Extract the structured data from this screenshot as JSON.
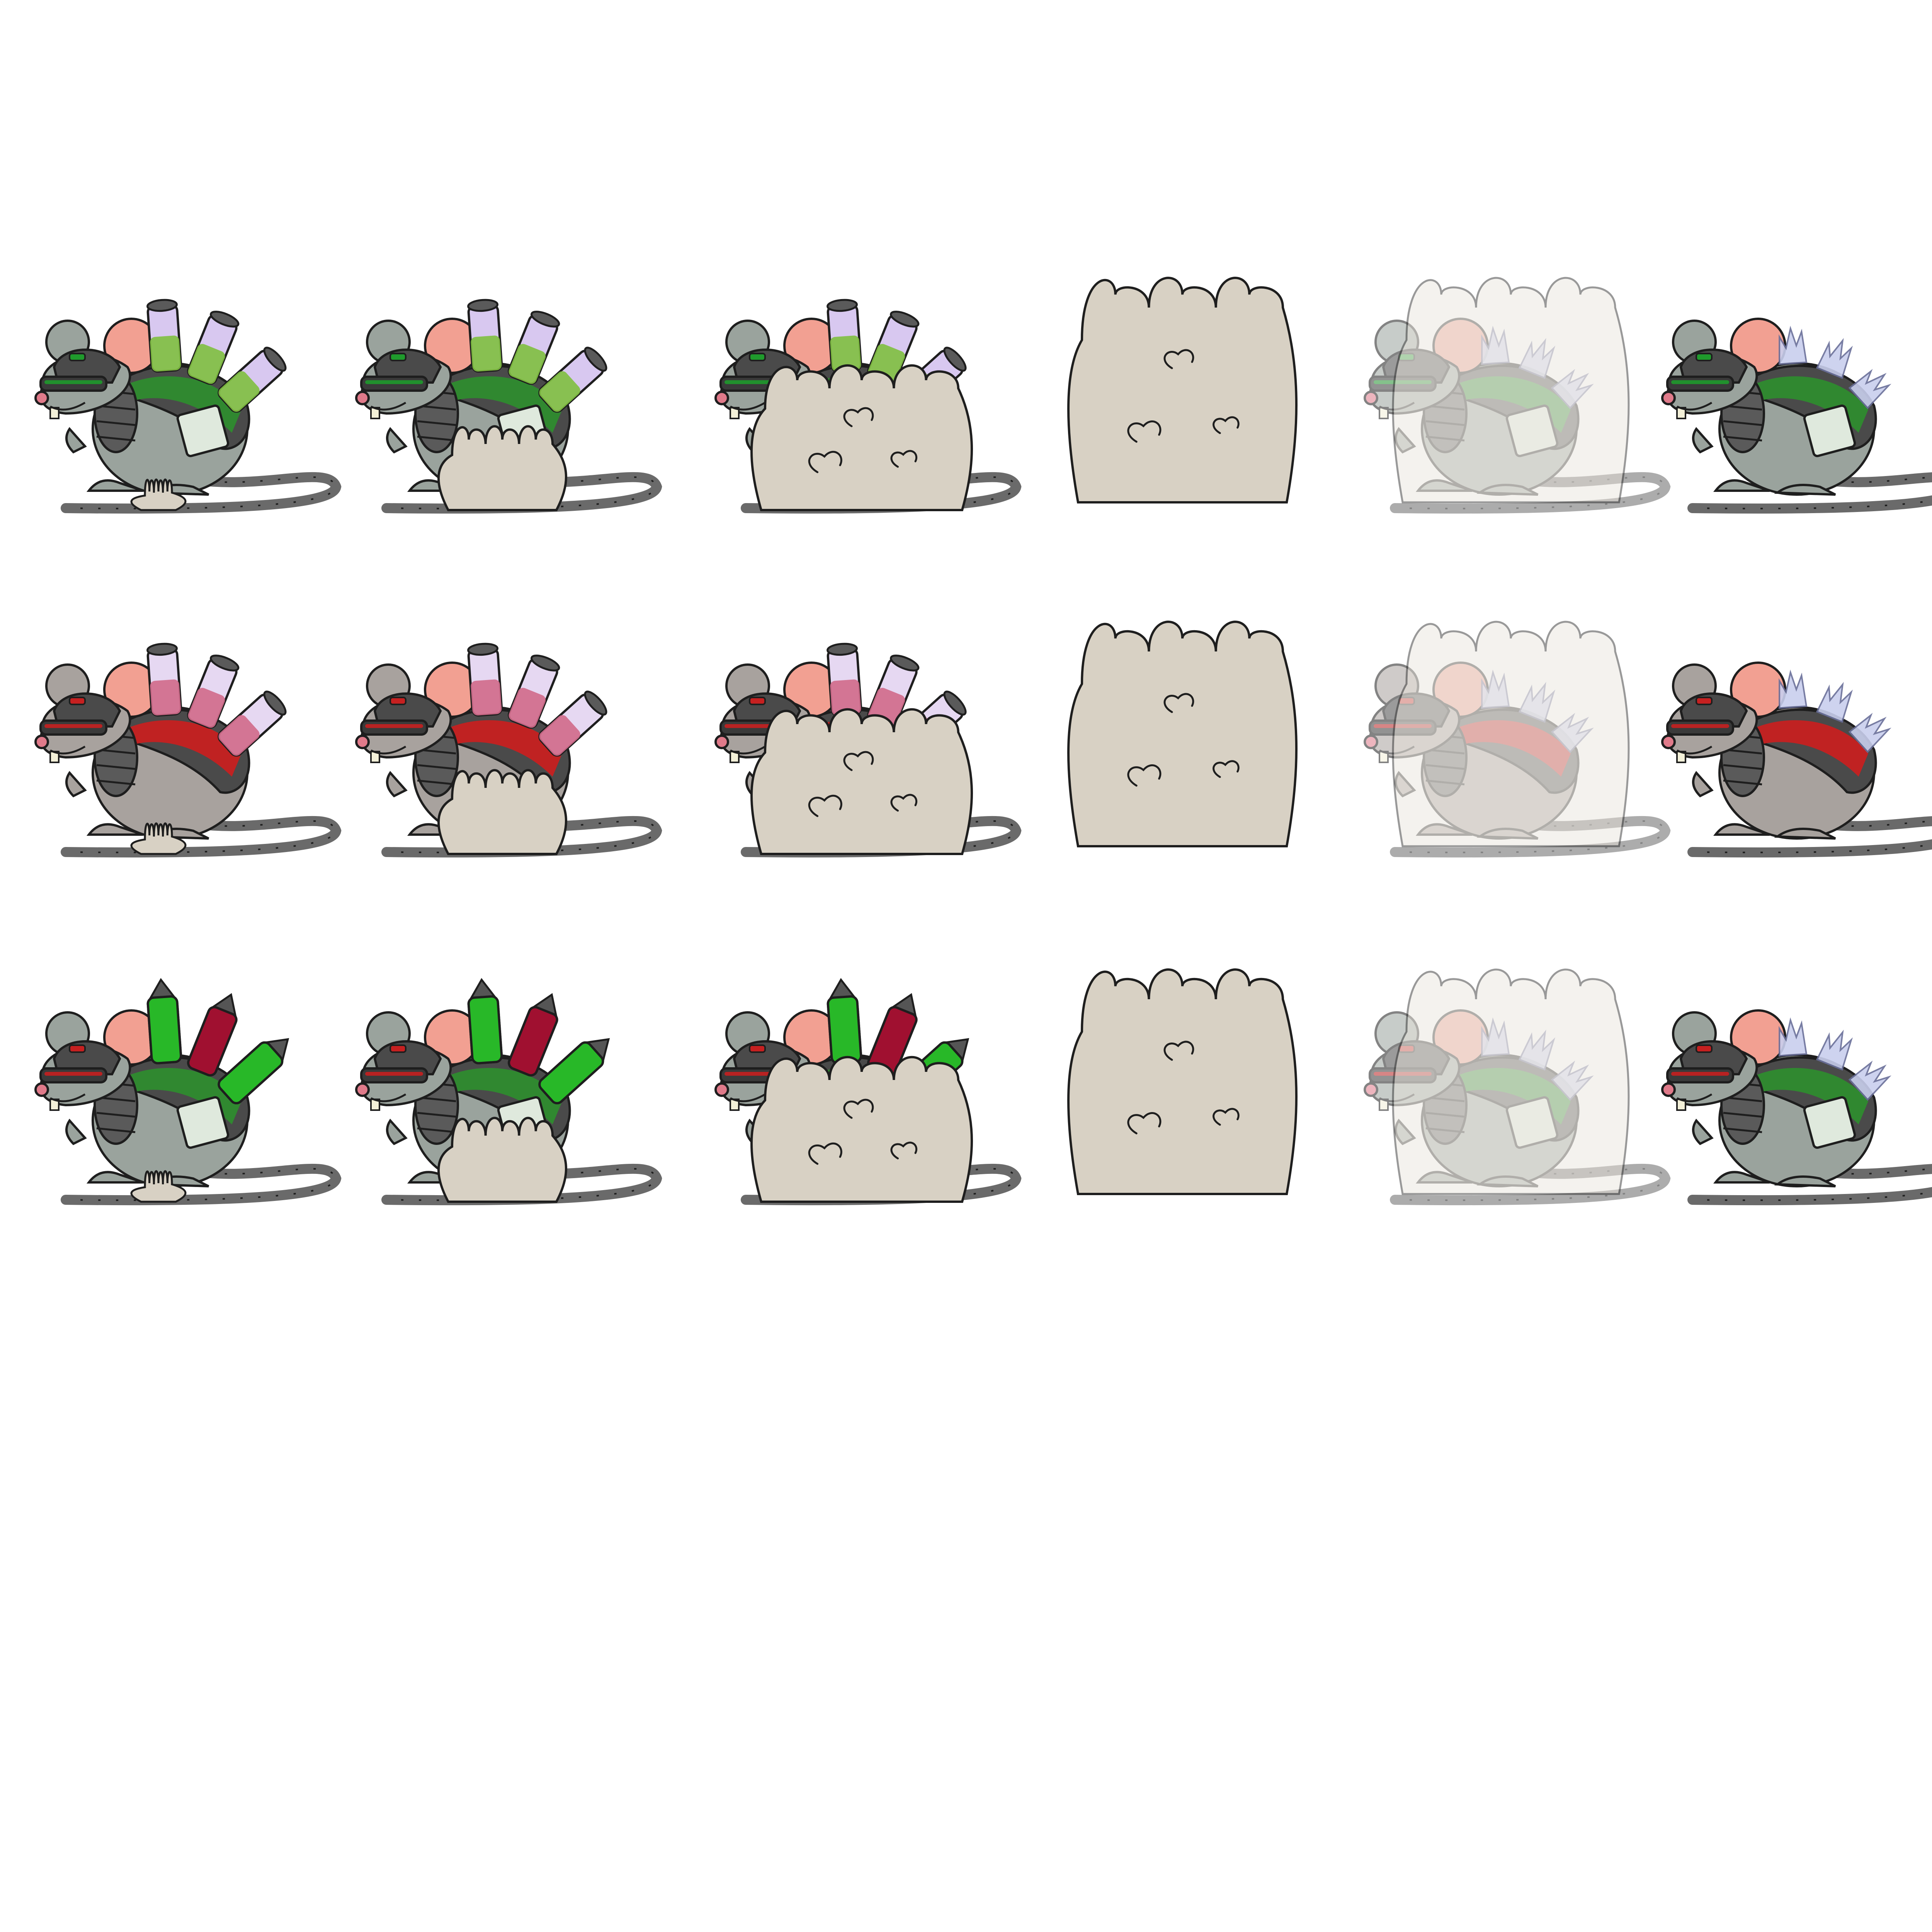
{
  "sprite_sheet": {
    "background": "#ffffff",
    "rows": [
      {
        "variant": "green-vials",
        "frames": [
          "idle",
          "smoke-small",
          "smoke-medium",
          "smoke-full",
          "smoke-fade",
          "vials-broken"
        ],
        "colors": {
          "fur": "#9aa39d",
          "armor": "#4a4a4a",
          "vest": "#2e8b2e",
          "vial_liquid": "#7fbf3f",
          "vial_top": "#d8c8f0",
          "goggle_accent": "#1f9a2c"
        }
      },
      {
        "variant": "red-vials",
        "frames": [
          "idle",
          "smoke-small",
          "smoke-medium",
          "smoke-full",
          "smoke-fade",
          "vials-broken"
        ],
        "colors": {
          "fur": "#a8a29e",
          "armor": "#4a4a4a",
          "vest": "#c62020",
          "vial_liquid": "#d06a8a",
          "vial_top": "#e6d8f2",
          "goggle_accent": "#c62020"
        }
      },
      {
        "variant": "spiked-canisters",
        "frames": [
          "idle",
          "smoke-small",
          "smoke-medium",
          "smoke-full",
          "smoke-fade",
          "vials-broken"
        ],
        "colors": {
          "fur": "#9aa39d",
          "armor": "#4a4a4a",
          "vest": "#2e8b2e",
          "vial_liquid": "#28b828",
          "vial_alt": "#a01030",
          "goggle_accent": "#c62020"
        }
      }
    ],
    "smoke_colors": {
      "fill": "#d8d1c4",
      "stroke": "#1e1e1e",
      "fade_fill": "#e8e3da"
    },
    "common_colors": {
      "ear_inner": "#f2a092",
      "nose": "#e07a8a",
      "outline": "#1e1e1e",
      "tail": "#6a6a6a",
      "shard": "#c9cfee"
    },
    "icons": [
      "rat-sprite",
      "smoke-cloud",
      "chemical-vial",
      "broken-vial-shards"
    ]
  }
}
